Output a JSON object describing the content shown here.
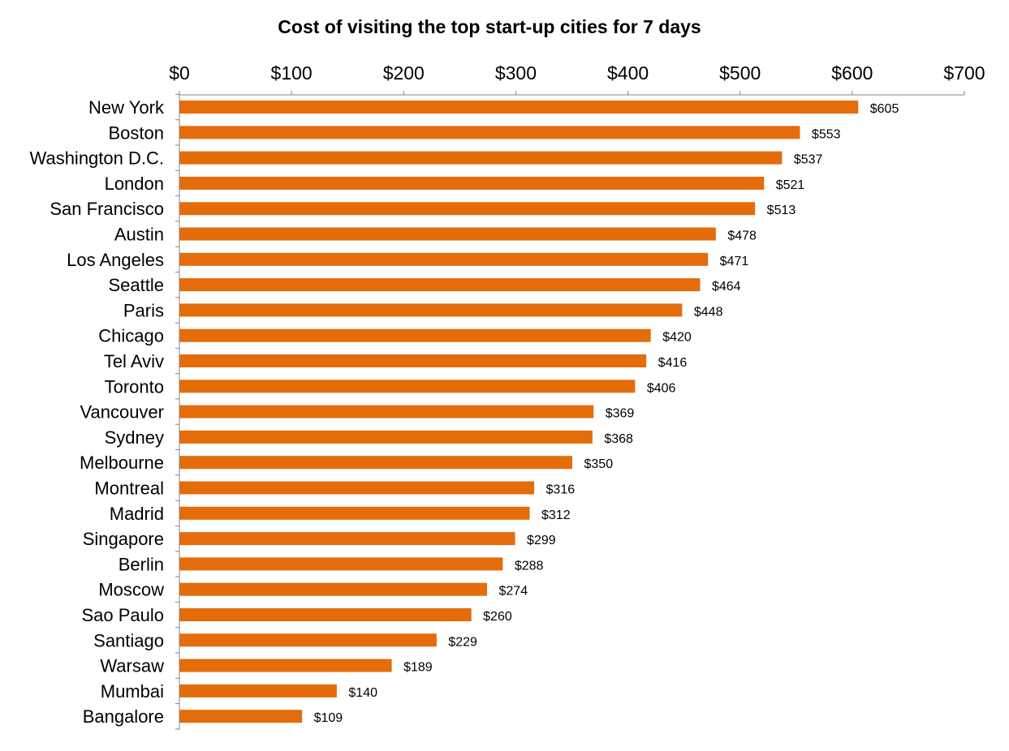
{
  "chart_data": {
    "type": "bar",
    "orientation": "horizontal",
    "title": "Cost of visiting the top start-up cities for 7 days",
    "xlabel": "",
    "ylabel": "",
    "xlim": [
      0,
      700
    ],
    "x_ticks": [
      0,
      100,
      200,
      300,
      400,
      500,
      600,
      700
    ],
    "x_tick_labels": [
      "$0",
      "$100",
      "$200",
      "$300",
      "$400",
      "$500",
      "$600",
      "$700"
    ],
    "x_axis_position": "top",
    "grid": false,
    "legend": false,
    "bar_color": "#E46C0A",
    "categories": [
      "New York",
      "Boston",
      "Washington D.C.",
      "London",
      "San Francisco",
      "Austin",
      "Los Angeles",
      "Seattle",
      "Paris",
      "Chicago",
      "Tel Aviv",
      "Toronto",
      "Vancouver",
      "Sydney",
      "Melbourne",
      "Montreal",
      "Madrid",
      "Singapore",
      "Berlin",
      "Moscow",
      "Sao Paulo",
      "Santiago",
      "Warsaw",
      "Mumbai",
      "Bangalore"
    ],
    "values": [
      605,
      553,
      537,
      521,
      513,
      478,
      471,
      464,
      448,
      420,
      416,
      406,
      369,
      368,
      350,
      316,
      312,
      299,
      288,
      274,
      260,
      229,
      189,
      140,
      109
    ],
    "data_labels": [
      "$605",
      "$553",
      "$537",
      "$521",
      "$513",
      "$478",
      "$471",
      "$464",
      "$448",
      "$420",
      "$416",
      "$406",
      "$369",
      "$368",
      "$350",
      "$316",
      "$312",
      "$299",
      "$288",
      "$274",
      "$260",
      "$229",
      "$189",
      "$140",
      "$109"
    ]
  }
}
